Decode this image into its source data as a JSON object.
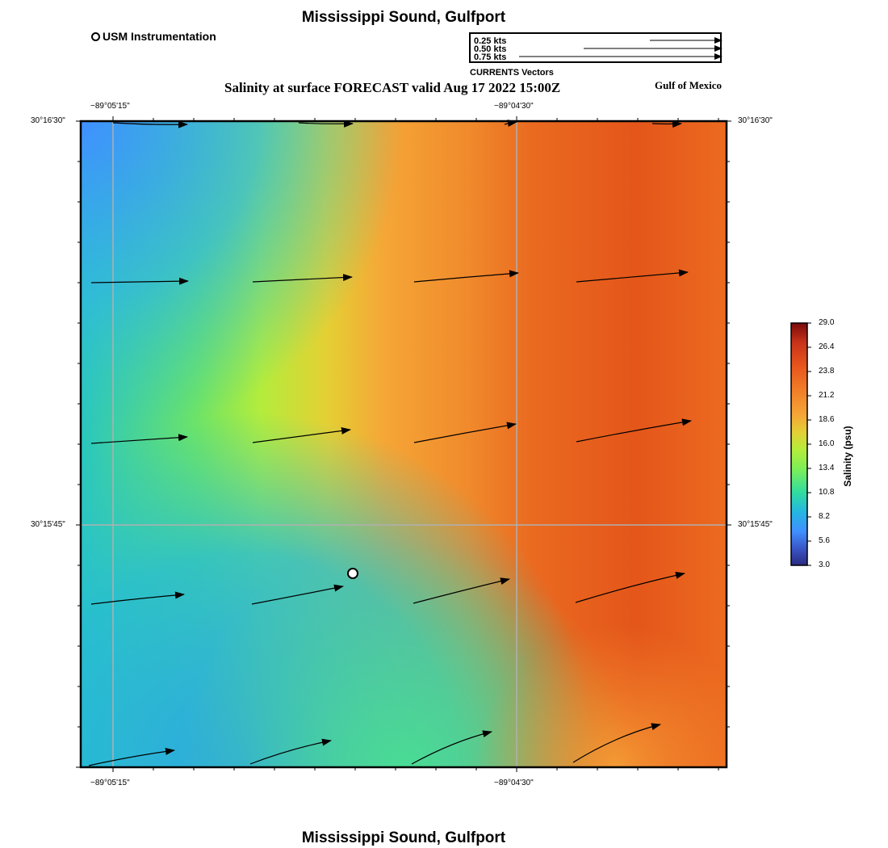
{
  "header": {
    "title": "Mississippi Sound, Gulfport",
    "forecast_title": "Salinity at surface FORECAST valid Aug 17 2022 15:00Z",
    "region": "Gulf of Mexico",
    "footer_title": "Mississippi Sound, Gulfport"
  },
  "legend": {
    "station_label": "USM Instrumentation",
    "vector_scale": [
      "0.25 kts",
      "0.50 kts",
      "0.75 kts"
    ],
    "vector_caption": "CURRENTS Vectors"
  },
  "axes": {
    "lon_ticks": [
      "−89°05'15\"",
      "−89°04'30\""
    ],
    "lat_ticks": [
      "30°16'30\"",
      "30°15'45\""
    ]
  },
  "colorbar": {
    "title": "Salinity (psu)",
    "ticks": [
      "29.0",
      "26.4",
      "23.8",
      "21.2",
      "18.6",
      "16.0",
      "13.4",
      "10.8",
      "8.2",
      "5.6",
      "3.0"
    ],
    "colors": [
      "#7a0a0a",
      "#c8331a",
      "#e8561c",
      "#f27f28",
      "#f5a636",
      "#e4cf36",
      "#b6ec3a",
      "#7ef056",
      "#30dca0",
      "#24b6e2",
      "#4090ff",
      "#2a2a80"
    ]
  },
  "colors": {
    "grid": "#b0b0b0",
    "arrow": "#000000"
  }
}
